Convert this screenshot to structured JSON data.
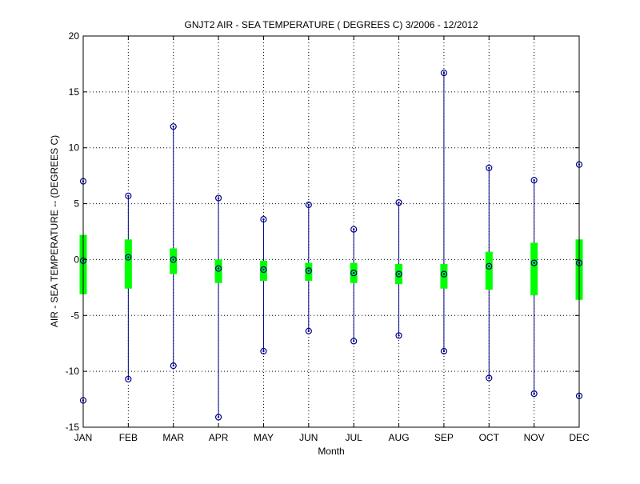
{
  "chart_data": {
    "type": "box",
    "title": "GNJT2  AIR - SEA TEMPERATURE ( DEGREES C) 3/2006 - 12/2012",
    "xlabel": "Month",
    "ylabel": "AIR - SEA TEMPERATURE -- (DEGREES C)",
    "ylim": [
      -15,
      20
    ],
    "yticks": [
      -15,
      -10,
      -5,
      0,
      5,
      10,
      15,
      20
    ],
    "grid": true,
    "categories": [
      "JAN",
      "FEB",
      "MAR",
      "APR",
      "MAY",
      "JUN",
      "JUL",
      "AUG",
      "SEP",
      "OCT",
      "NOV",
      "DEC"
    ],
    "max": [
      7.0,
      5.7,
      11.9,
      5.5,
      3.6,
      4.9,
      2.7,
      5.1,
      16.7,
      8.2,
      7.1,
      8.5
    ],
    "q3": [
      2.2,
      1.8,
      1.0,
      0.0,
      -0.1,
      -0.3,
      -0.3,
      -0.4,
      -0.4,
      0.7,
      1.5,
      1.8
    ],
    "median": [
      -0.1,
      0.2,
      0.0,
      -0.8,
      -0.9,
      -1.0,
      -1.2,
      -1.3,
      -1.3,
      -0.6,
      -0.3,
      -0.3
    ],
    "q1": [
      -3.1,
      -2.6,
      -1.3,
      -2.1,
      -1.9,
      -1.9,
      -2.1,
      -2.2,
      -2.6,
      -2.7,
      -3.2,
      -3.6
    ],
    "min": [
      -12.6,
      -10.7,
      -9.5,
      -14.1,
      -8.2,
      -6.4,
      -7.3,
      -6.8,
      -8.2,
      -10.6,
      -12.0,
      -12.2
    ],
    "colors": {
      "box": "#00ff00",
      "whisker": "#00008b",
      "grid": "#000000"
    }
  }
}
